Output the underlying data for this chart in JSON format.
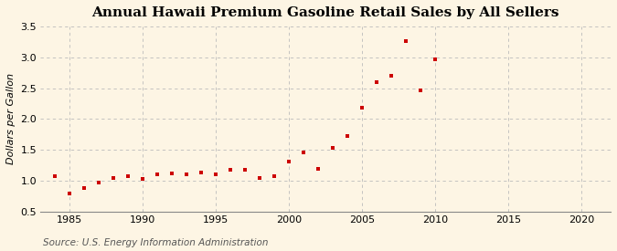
{
  "title": "Annual Hawaii Premium Gasoline Retail Sales by All Sellers",
  "ylabel": "Dollars per Gallon",
  "source": "Source: U.S. Energy Information Administration",
  "background_color": "#fdf5e4",
  "plot_bg_color": "#fdf5e4",
  "marker_color": "#cc0000",
  "grid_color": "#bbbbbb",
  "spine_color": "#888888",
  "xlim": [
    1983,
    2022
  ],
  "ylim": [
    0.5,
    3.5
  ],
  "xticks": [
    1985,
    1990,
    1995,
    2000,
    2005,
    2010,
    2015,
    2020
  ],
  "yticks": [
    0.5,
    1.0,
    1.5,
    2.0,
    2.5,
    3.0,
    3.5
  ],
  "years": [
    1984,
    1985,
    1986,
    1987,
    1988,
    1989,
    1990,
    1991,
    1992,
    1993,
    1994,
    1995,
    1996,
    1997,
    1998,
    1999,
    2000,
    2001,
    2002,
    2003,
    2004,
    2005,
    2006,
    2007,
    2008,
    2009,
    2010
  ],
  "values": [
    1.08,
    0.8,
    0.88,
    0.97,
    1.05,
    1.08,
    1.03,
    1.1,
    1.12,
    1.1,
    1.13,
    1.1,
    1.18,
    1.18,
    1.05,
    1.08,
    1.31,
    1.46,
    1.19,
    1.54,
    1.72,
    2.18,
    2.6,
    2.7,
    3.26,
    2.47,
    2.97
  ],
  "title_fontsize": 11,
  "tick_fontsize": 8,
  "ylabel_fontsize": 8,
  "source_fontsize": 7.5,
  "marker_size": 3.5
}
